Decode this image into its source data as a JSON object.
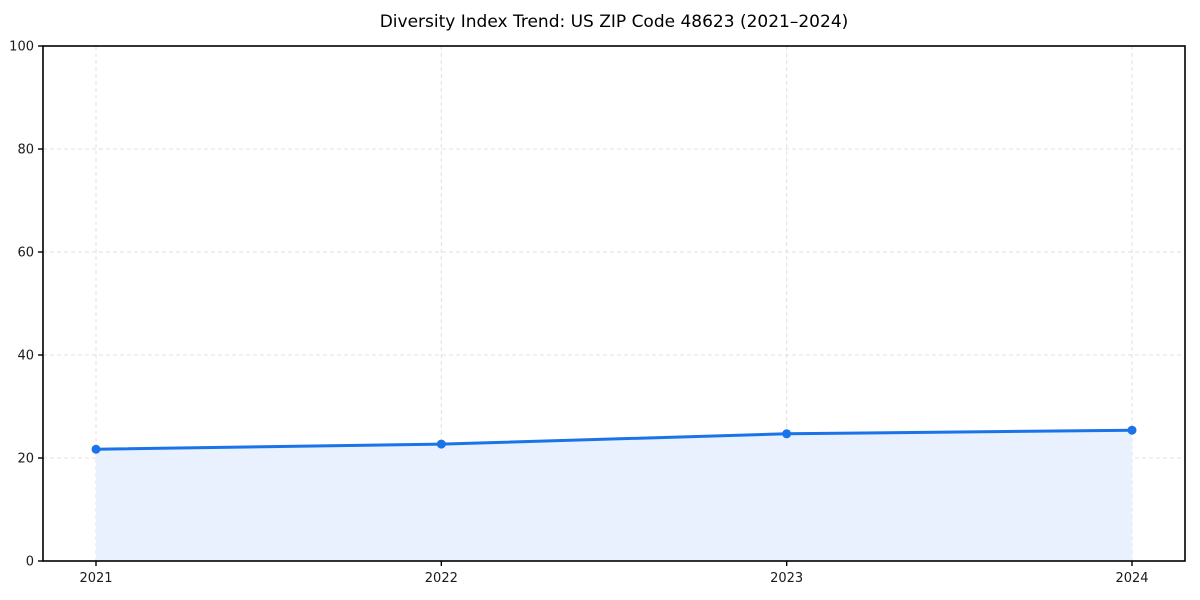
{
  "chart_data": {
    "type": "line",
    "title": "Diversity Index Trend: US ZIP Code 48623 (2021–2024)",
    "x": [
      2021,
      2022,
      2023,
      2024
    ],
    "xticks": [
      "2021",
      "2022",
      "2023",
      "2024"
    ],
    "series": [
      {
        "name": "Diversity Index",
        "values": [
          21.7,
          22.7,
          24.7,
          25.4
        ]
      }
    ],
    "xlabel": "",
    "ylabel": "",
    "ylim": [
      0,
      100
    ],
    "yticks": [
      0,
      20,
      40,
      60,
      80,
      100
    ],
    "grid": true,
    "grid_style": "dashed",
    "legend_position": "none",
    "area_fill": true,
    "markers": true,
    "colors": {
      "line": "#1a73e8",
      "marker": "#1a73e8",
      "area_fill": "#e8f1fd",
      "gridline": "#e0e0e0",
      "spine": "#000000",
      "tick": "#000000",
      "tick_label": "#1a1a1a",
      "title": "#000000",
      "background": "#ffffff"
    }
  }
}
